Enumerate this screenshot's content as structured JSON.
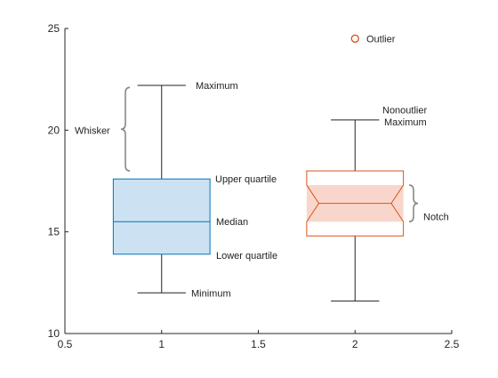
{
  "chart_data": {
    "type": "box",
    "title": "",
    "xlabel": "",
    "ylabel": "",
    "xlim": [
      0.5,
      2.5
    ],
    "ylim": [
      10,
      25
    ],
    "xticks": [
      "0.5",
      "1",
      "1.5",
      "2",
      "2.5"
    ],
    "yticks": [
      "10",
      "15",
      "20",
      "25"
    ],
    "grid": false,
    "legend_position": "top-right",
    "series": [
      {
        "position": 1,
        "whisker_low": 12.0,
        "q1": 13.9,
        "median": 15.5,
        "q3": 17.6,
        "whisker_high": 22.2,
        "notched": false,
        "color": "#0072BD",
        "fill": "#cce2f2"
      },
      {
        "position": 2,
        "whisker_low": 11.6,
        "q1": 14.8,
        "median": 16.4,
        "q3": 18.0,
        "notch_low": 15.5,
        "notch_high": 17.3,
        "whisker_high": 20.5,
        "outlier": 24.5,
        "notched": true,
        "color": "#D95319",
        "fill": "#f9d6cb"
      }
    ],
    "annotations": {
      "maximum": "Maximum",
      "whisker": "Whisker",
      "upper_quartile": "Upper quartile",
      "median": "Median",
      "lower_quartile": "Lower quartile",
      "minimum": "Minimum",
      "nonoutlier_line1": "Nonoutlier",
      "nonoutlier_line2": "Maximum",
      "notch": "Notch",
      "outlier": "Outlier"
    }
  }
}
